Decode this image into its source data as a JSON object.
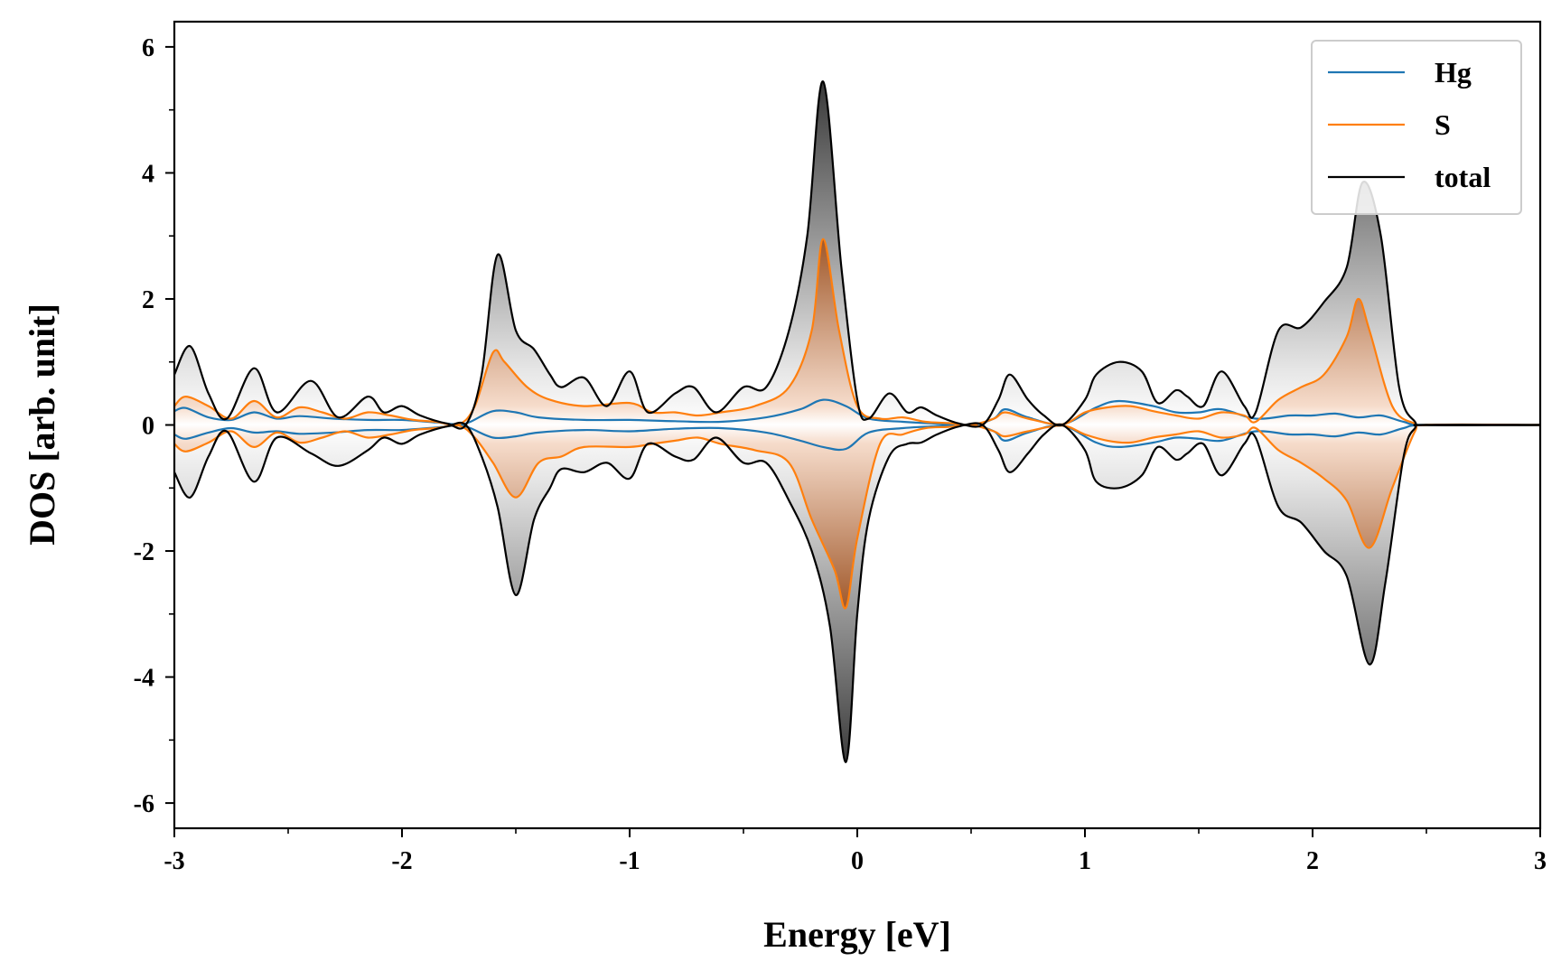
{
  "chart_data": {
    "type": "line",
    "xlabel": "Energy [eV]",
    "ylabel": "DOS [arb. unit]",
    "xlim": [
      -3,
      3
    ],
    "ylim": [
      -6.4,
      6.4
    ],
    "x_ticks": [
      -3,
      -2,
      -1,
      0,
      1,
      2,
      3
    ],
    "x_tick_labels": [
      "-3",
      "-2",
      "-1",
      "0",
      "1",
      "2",
      "3"
    ],
    "y_ticks": [
      -6,
      -4,
      -2,
      0,
      2,
      4,
      6
    ],
    "y_tick_labels": [
      "-6",
      "-4",
      "-2",
      "0",
      "2",
      "4",
      "6"
    ],
    "grid": false,
    "legend_position": "top-right",
    "fill": "vertical gradient under S and total curves (gray for total, orange-brown for S)",
    "series": [
      {
        "name": "Hg",
        "color": "#1f77b4",
        "spin_up": {
          "x": [
            -3,
            -2.95,
            -2.85,
            -2.75,
            -2.65,
            -2.55,
            -2.45,
            -2.3,
            -2.15,
            -2.0,
            -1.85,
            -1.75,
            -1.7,
            -1.6,
            -1.5,
            -1.4,
            -1.2,
            -1.0,
            -0.8,
            -0.6,
            -0.4,
            -0.25,
            -0.15,
            -0.05,
            0.05,
            0.2,
            0.35,
            0.5,
            0.6,
            0.65,
            0.75,
            0.9,
            1.05,
            1.15,
            1.3,
            1.4,
            1.5,
            1.6,
            1.75,
            1.9,
            2.0,
            2.1,
            2.2,
            2.3,
            2.4,
            2.5,
            3.0
          ],
          "y": [
            0.22,
            0.27,
            0.12,
            0.08,
            0.2,
            0.1,
            0.14,
            0.1,
            0.08,
            0.08,
            0.04,
            0.01,
            0.05,
            0.22,
            0.2,
            0.12,
            0.08,
            0.08,
            0.06,
            0.05,
            0.12,
            0.25,
            0.4,
            0.3,
            0.1,
            0.05,
            0.02,
            0.0,
            0.1,
            0.25,
            0.12,
            0.01,
            0.28,
            0.38,
            0.3,
            0.2,
            0.2,
            0.25,
            0.1,
            0.15,
            0.15,
            0.18,
            0.12,
            0.15,
            0.05,
            0.0,
            0.0
          ]
        },
        "spin_down": {
          "x": [
            -3,
            -2.95,
            -2.85,
            -2.75,
            -2.65,
            -2.55,
            -2.45,
            -2.3,
            -2.15,
            -2.0,
            -1.85,
            -1.75,
            -1.7,
            -1.6,
            -1.5,
            -1.4,
            -1.2,
            -1.0,
            -0.8,
            -0.6,
            -0.4,
            -0.25,
            -0.15,
            -0.05,
            0.05,
            0.2,
            0.35,
            0.5,
            0.6,
            0.65,
            0.75,
            0.9,
            1.05,
            1.15,
            1.3,
            1.4,
            1.5,
            1.6,
            1.75,
            1.9,
            2.0,
            2.1,
            2.2,
            2.3,
            2.4,
            2.5,
            3.0
          ],
          "y": [
            -0.15,
            -0.22,
            -0.12,
            -0.05,
            -0.12,
            -0.1,
            -0.14,
            -0.12,
            -0.08,
            -0.08,
            -0.04,
            -0.01,
            -0.05,
            -0.2,
            -0.18,
            -0.12,
            -0.08,
            -0.1,
            -0.06,
            -0.05,
            -0.12,
            -0.25,
            -0.35,
            -0.38,
            -0.12,
            -0.05,
            -0.02,
            0.0,
            -0.1,
            -0.25,
            -0.12,
            -0.01,
            -0.28,
            -0.35,
            -0.28,
            -0.2,
            -0.22,
            -0.25,
            -0.1,
            -0.15,
            -0.15,
            -0.18,
            -0.12,
            -0.15,
            -0.05,
            0.0,
            0.0
          ]
        }
      },
      {
        "name": "S",
        "color": "#ff7f0e",
        "spin_up": {
          "x": [
            -3,
            -2.95,
            -2.85,
            -2.75,
            -2.65,
            -2.55,
            -2.45,
            -2.35,
            -2.25,
            -2.15,
            -2.05,
            -1.95,
            -1.85,
            -1.75,
            -1.68,
            -1.6,
            -1.55,
            -1.45,
            -1.35,
            -1.2,
            -1.0,
            -0.9,
            -0.8,
            -0.7,
            -0.6,
            -0.45,
            -0.3,
            -0.2,
            -0.15,
            -0.08,
            0.0,
            0.1,
            0.2,
            0.3,
            0.4,
            0.5,
            0.6,
            0.65,
            0.75,
            0.9,
            1.0,
            1.1,
            1.2,
            1.3,
            1.4,
            1.5,
            1.6,
            1.7,
            1.75,
            1.85,
            1.95,
            2.05,
            2.15,
            2.2,
            2.25,
            2.35,
            2.45,
            2.5,
            3.0
          ],
          "y": [
            0.3,
            0.45,
            0.3,
            0.1,
            0.38,
            0.12,
            0.28,
            0.2,
            0.1,
            0.2,
            0.15,
            0.08,
            0.05,
            0.01,
            0.3,
            1.15,
            1.0,
            0.6,
            0.4,
            0.3,
            0.35,
            0.2,
            0.2,
            0.15,
            0.2,
            0.3,
            0.6,
            1.5,
            2.95,
            1.5,
            0.3,
            0.1,
            0.12,
            0.05,
            0.03,
            0.0,
            0.1,
            0.2,
            0.1,
            0.01,
            0.2,
            0.28,
            0.3,
            0.22,
            0.15,
            0.1,
            0.2,
            0.15,
            0.05,
            0.4,
            0.6,
            0.8,
            1.4,
            2.0,
            1.5,
            0.3,
            0.02,
            0.0,
            0.0
          ]
        },
        "spin_down": {
          "x": [
            -3,
            -2.95,
            -2.85,
            -2.75,
            -2.65,
            -2.55,
            -2.45,
            -2.35,
            -2.25,
            -2.15,
            -2.05,
            -1.95,
            -1.85,
            -1.75,
            -1.68,
            -1.6,
            -1.5,
            -1.4,
            -1.3,
            -1.2,
            -1.0,
            -0.9,
            -0.8,
            -0.7,
            -0.6,
            -0.45,
            -0.3,
            -0.2,
            -0.1,
            -0.05,
            0.0,
            0.1,
            0.2,
            0.3,
            0.4,
            0.5,
            0.6,
            0.65,
            0.75,
            0.9,
            1.0,
            1.1,
            1.2,
            1.3,
            1.4,
            1.5,
            1.6,
            1.7,
            1.75,
            1.85,
            1.95,
            2.05,
            2.15,
            2.25,
            2.35,
            2.45,
            2.5,
            3.0
          ],
          "y": [
            -0.3,
            -0.42,
            -0.28,
            -0.1,
            -0.35,
            -0.12,
            -0.28,
            -0.2,
            -0.1,
            -0.2,
            -0.15,
            -0.08,
            -0.05,
            -0.01,
            -0.2,
            -0.6,
            -1.15,
            -0.6,
            -0.5,
            -0.35,
            -0.35,
            -0.3,
            -0.25,
            -0.2,
            -0.3,
            -0.4,
            -0.6,
            -1.5,
            -2.3,
            -2.9,
            -1.8,
            -0.3,
            -0.15,
            -0.05,
            -0.03,
            0.0,
            -0.1,
            -0.18,
            -0.1,
            -0.01,
            -0.15,
            -0.25,
            -0.28,
            -0.2,
            -0.15,
            -0.1,
            -0.2,
            -0.15,
            -0.05,
            -0.4,
            -0.6,
            -0.85,
            -1.2,
            -1.95,
            -1.0,
            -0.1,
            0.0,
            0.0
          ]
        }
      },
      {
        "name": "total",
        "color": "#000000",
        "spin_up": {
          "x": [
            -3,
            -2.93,
            -2.85,
            -2.77,
            -2.65,
            -2.55,
            -2.4,
            -2.28,
            -2.15,
            -2.08,
            -2.0,
            -1.92,
            -1.8,
            -1.72,
            -1.65,
            -1.58,
            -1.5,
            -1.42,
            -1.35,
            -1.3,
            -1.2,
            -1.1,
            -1.0,
            -0.92,
            -0.8,
            -0.72,
            -0.62,
            -0.5,
            -0.4,
            -0.3,
            -0.22,
            -0.15,
            -0.07,
            0.0,
            0.05,
            0.14,
            0.22,
            0.28,
            0.35,
            0.45,
            0.55,
            0.62,
            0.67,
            0.75,
            0.82,
            0.9,
            1.0,
            1.05,
            1.15,
            1.25,
            1.32,
            1.4,
            1.45,
            1.52,
            1.6,
            1.7,
            1.75,
            1.85,
            1.95,
            2.05,
            2.15,
            2.22,
            2.3,
            2.38,
            2.45,
            2.5,
            3.0
          ],
          "y": [
            0.8,
            1.25,
            0.5,
            0.1,
            0.9,
            0.2,
            0.7,
            0.12,
            0.45,
            0.2,
            0.3,
            0.15,
            0.02,
            0.0,
            0.8,
            2.7,
            1.5,
            1.2,
            0.8,
            0.6,
            0.75,
            0.3,
            0.85,
            0.2,
            0.5,
            0.6,
            0.2,
            0.6,
            0.6,
            1.5,
            3.0,
            5.45,
            2.5,
            0.4,
            0.1,
            0.5,
            0.2,
            0.28,
            0.15,
            0.02,
            0.0,
            0.4,
            0.8,
            0.4,
            0.15,
            0.0,
            0.4,
            0.8,
            1.0,
            0.85,
            0.35,
            0.55,
            0.45,
            0.3,
            0.85,
            0.3,
            0.2,
            1.5,
            1.55,
            1.95,
            2.5,
            3.85,
            3.0,
            0.6,
            0.05,
            0.0,
            0.0
          ]
        },
        "spin_down": {
          "x": [
            -3,
            -2.93,
            -2.85,
            -2.77,
            -2.65,
            -2.55,
            -2.4,
            -2.28,
            -2.15,
            -2.08,
            -2.0,
            -1.92,
            -1.8,
            -1.72,
            -1.65,
            -1.58,
            -1.5,
            -1.42,
            -1.35,
            -1.3,
            -1.2,
            -1.1,
            -1.0,
            -0.92,
            -0.8,
            -0.72,
            -0.62,
            -0.5,
            -0.4,
            -0.3,
            -0.2,
            -0.12,
            -0.05,
            0.0,
            0.05,
            0.14,
            0.22,
            0.28,
            0.35,
            0.45,
            0.55,
            0.62,
            0.67,
            0.75,
            0.82,
            0.9,
            1.0,
            1.05,
            1.15,
            1.25,
            1.32,
            1.4,
            1.45,
            1.52,
            1.6,
            1.7,
            1.75,
            1.85,
            1.95,
            2.05,
            2.15,
            2.25,
            2.32,
            2.4,
            2.45,
            2.5,
            3.0
          ],
          "y": [
            -0.75,
            -1.15,
            -0.5,
            -0.1,
            -0.9,
            -0.2,
            -0.45,
            -0.65,
            -0.4,
            -0.2,
            -0.3,
            -0.15,
            -0.02,
            0.0,
            -0.5,
            -1.3,
            -2.7,
            -1.5,
            -1.0,
            -0.7,
            -0.75,
            -0.6,
            -0.85,
            -0.3,
            -0.5,
            -0.55,
            -0.2,
            -0.6,
            -0.6,
            -1.2,
            -2.0,
            -3.2,
            -5.35,
            -3.0,
            -1.5,
            -0.5,
            -0.3,
            -0.28,
            -0.15,
            -0.02,
            0.0,
            -0.4,
            -0.75,
            -0.45,
            -0.15,
            0.0,
            -0.4,
            -0.9,
            -1.0,
            -0.8,
            -0.35,
            -0.55,
            -0.45,
            -0.3,
            -0.8,
            -0.3,
            -0.2,
            -1.3,
            -1.55,
            -2.0,
            -2.4,
            -3.8,
            -2.5,
            -0.5,
            -0.05,
            0.0,
            0.0
          ]
        }
      }
    ]
  }
}
